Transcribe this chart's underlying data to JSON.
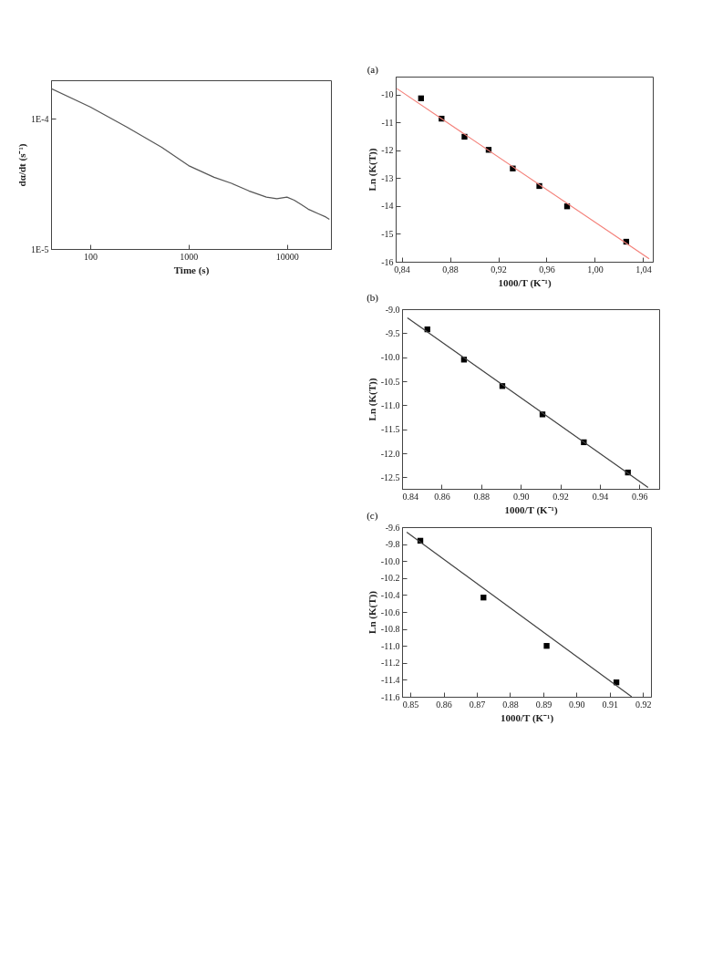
{
  "chart_data": [
    {
      "type": "line",
      "xlabel": "Time (s)",
      "ylabel": "dα/dt (s⁻¹)",
      "log": "xy",
      "grid": false,
      "xlim": [
        40,
        28000
      ],
      "ylim": [
        1e-05,
        0.000197
      ],
      "xticks": [
        100,
        1000,
        10000
      ],
      "yticks": [
        {
          "value": 0.0001,
          "label": "1E-4"
        },
        {
          "value": 1e-05,
          "label": "1E-5"
        }
      ],
      "series": [
        {
          "color": "#555555",
          "x": [
            40,
            100,
            235,
            533,
            1000,
            1815,
            2730,
            4100,
            6180,
            7890,
            10000,
            11850,
            13960,
            16440,
            21000,
            24800,
            27000
          ],
          "values": [
            0.00017,
            0.000123,
            8.64e-05,
            6.02e-05,
            4.36e-05,
            3.55e-05,
            3.19e-05,
            2.79e-05,
            2.5e-05,
            2.43e-05,
            2.5e-05,
            2.37e-05,
            2.19e-05,
            2.02e-05,
            1.86e-05,
            1.76e-05,
            1.69e-05
          ]
        }
      ]
    },
    {
      "type": "scatter",
      "title": "(a)",
      "xlabel": "1000/T (K⁻¹)",
      "ylabel": "Ln (K(T))",
      "marker": "square",
      "grid": false,
      "xlim": [
        0.835,
        1.048
      ],
      "ylim": [
        -16,
        -9.35
      ],
      "xticks": [
        {
          "value": 0.84,
          "label": "0,84"
        },
        {
          "value": 0.88,
          "label": "0,88"
        },
        {
          "value": 0.92,
          "label": "0,92"
        },
        {
          "value": 0.96,
          "label": "0,96"
        },
        {
          "value": 1.0,
          "label": "1,00"
        },
        {
          "value": 1.04,
          "label": "1,04"
        }
      ],
      "yticks": [
        -10,
        -11,
        -12,
        -13,
        -14,
        -15,
        -16
      ],
      "series": [
        {
          "color": "#000000",
          "x": [
            0.856,
            0.873,
            0.892,
            0.912,
            0.932,
            0.954,
            0.977,
            1.026
          ],
          "values": [
            -10.13,
            -10.86,
            -11.51,
            -11.98,
            -12.65,
            -13.28,
            -14.01,
            -15.28
          ]
        },
        {
          "type": "line",
          "marker": "none",
          "color": "#f4817a",
          "x": [
            0.836,
            1.045
          ],
          "values": [
            -9.78,
            -15.89
          ]
        }
      ]
    },
    {
      "type": "scatter",
      "title": "(b)",
      "xlabel": "1000/T (K⁻¹)",
      "ylabel": "Ln (K(T))",
      "marker": "square",
      "grid": false,
      "xlim": [
        0.84,
        0.97
      ],
      "ylim": [
        -12.74,
        -9.0
      ],
      "xticks": [
        0.84,
        0.86,
        0.88,
        {
          "value": 0.9,
          "label": "0.90"
        },
        0.92,
        0.94,
        0.96
      ],
      "yticks": [
        {
          "value": -9.0,
          "label": "-9.0"
        },
        -9.5,
        {
          "value": -10.0,
          "label": "-10.0"
        },
        -10.5,
        {
          "value": -11.0,
          "label": "-11.0"
        },
        -11.5,
        {
          "value": -12.0,
          "label": "-12.0"
        },
        -12.5
      ],
      "series": [
        {
          "color": "#000000",
          "x": [
            0.8528,
            0.8713,
            0.8907,
            0.911,
            0.9319,
            0.9542
          ],
          "values": [
            -9.42,
            -10.05,
            -10.6,
            -11.19,
            -11.77,
            -12.4
          ]
        },
        {
          "type": "line",
          "marker": "none",
          "color": "#404040",
          "x": [
            0.8427,
            0.9644
          ],
          "values": [
            -9.18,
            -12.71
          ]
        }
      ]
    },
    {
      "type": "scatter",
      "title": "(c)",
      "xlabel": "1000/T (K⁻¹)",
      "ylabel": "Ln (K(T))",
      "marker": "square",
      "grid": false,
      "xlim": [
        0.8475,
        0.9224
      ],
      "ylim": [
        -11.6,
        -9.6
      ],
      "xticks": [
        0.85,
        0.86,
        0.87,
        0.88,
        0.89,
        {
          "value": 0.9,
          "label": "0.90"
        },
        0.91,
        {
          "value": 0.92,
          "label": "0.92"
        }
      ],
      "yticks": [
        -9.6,
        -9.8,
        {
          "value": -10.0,
          "label": "-10.0"
        },
        -10.2,
        -10.4,
        -10.6,
        -10.8,
        {
          "value": -11.0,
          "label": "-11.0"
        },
        -11.2,
        -11.4,
        -11.6
      ],
      "series": [
        {
          "color": "#000000",
          "x": [
            0.853,
            0.872,
            0.891,
            0.912
          ],
          "values": [
            -9.76,
            -10.43,
            -11.0,
            -11.43
          ]
        },
        {
          "type": "line",
          "marker": "none",
          "color": "#404040",
          "x": [
            0.8489,
            0.9166
          ],
          "values": [
            -9.66,
            -11.6
          ]
        }
      ]
    }
  ]
}
